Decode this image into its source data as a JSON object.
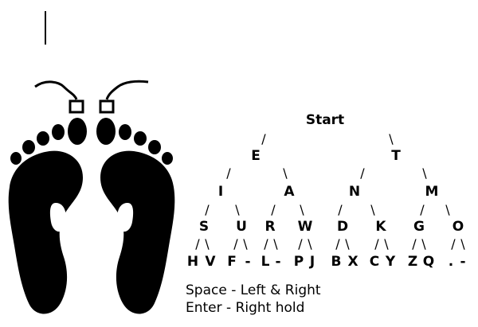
{
  "tree": {
    "root": "Start",
    "level1": [
      "E",
      "T"
    ],
    "level2": [
      "I",
      "A",
      "N",
      "M"
    ],
    "level3": [
      "S",
      "U",
      "R",
      "W",
      "D",
      "K",
      "G",
      "O"
    ],
    "level4": [
      "H",
      "V",
      "F",
      "-",
      "L",
      "-",
      "P",
      "J",
      "B",
      "X",
      "C",
      "Y",
      "Z",
      "Q",
      ".",
      "-"
    ]
  },
  "branch": {
    "left": "/",
    "right": "\\"
  },
  "legend": {
    "space": "Space - Left & Right",
    "enter": "Enter - Right hold"
  },
  "icons": {
    "feet": "footprints-with-pedal-switches-icon",
    "cursor": "text-cursor-icon"
  },
  "colors": {
    "ink": "#000000",
    "background": "#ffffff"
  }
}
